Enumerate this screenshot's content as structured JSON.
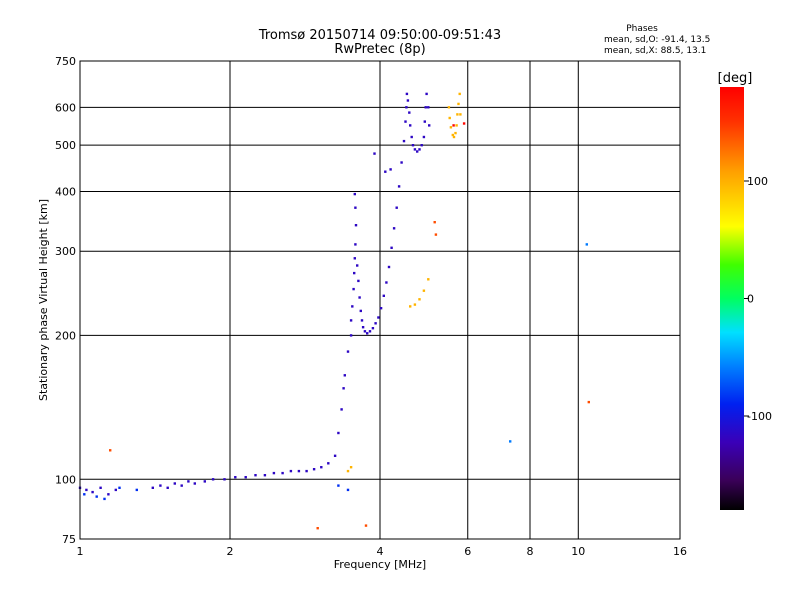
{
  "chart_data": {
    "type": "scatter",
    "title": "Tromsø 20150714 09:50:00-09:51:43",
    "subtitle": "RwPretec (8p)",
    "xlabel": "Frequency [MHz]",
    "ylabel": "Stationary phase Virtual Height [km]",
    "x_scale": "log",
    "y_scale": "log",
    "xlim": [
      1,
      16
    ],
    "ylim": [
      75,
      750
    ],
    "x_ticks": [
      1,
      2,
      4,
      6,
      8,
      10,
      16
    ],
    "y_ticks": [
      75,
      100,
      200,
      300,
      400,
      500,
      600,
      750
    ],
    "grid": true,
    "phase_stats": {
      "heading": "Phases",
      "line1": "mean, sd,O: -91.4, 13.5",
      "line2": "mean, sd,X:  88.5, 13.1"
    },
    "colorbar": {
      "label": "[deg]",
      "range": [
        -180,
        180
      ],
      "ticks": [
        100,
        0,
        -100
      ]
    },
    "series": [
      {
        "phase_deg": -115,
        "points": [
          [
            1.0,
            96
          ],
          [
            1.03,
            95
          ],
          [
            1.06,
            94
          ],
          [
            1.1,
            96
          ],
          [
            1.14,
            93
          ],
          [
            1.18,
            95
          ],
          [
            1.4,
            96
          ],
          [
            1.45,
            97
          ],
          [
            1.5,
            96
          ],
          [
            1.55,
            98
          ],
          [
            1.6,
            97
          ],
          [
            1.65,
            99
          ],
          [
            1.7,
            98
          ],
          [
            1.78,
            99
          ],
          [
            1.85,
            100
          ],
          [
            1.95,
            100
          ],
          [
            2.05,
            101
          ],
          [
            2.15,
            101
          ],
          [
            2.25,
            102
          ],
          [
            2.35,
            102
          ],
          [
            2.45,
            103
          ],
          [
            2.55,
            103
          ],
          [
            2.65,
            104
          ],
          [
            2.75,
            104
          ],
          [
            2.85,
            104
          ],
          [
            2.95,
            105
          ],
          [
            3.05,
            106
          ],
          [
            3.15,
            108
          ],
          [
            3.25,
            112
          ],
          [
            3.3,
            125
          ],
          [
            3.35,
            140
          ],
          [
            3.38,
            155
          ],
          [
            3.4,
            165
          ],
          [
            3.45,
            185
          ],
          [
            3.5,
            200
          ],
          [
            3.5,
            215
          ],
          [
            3.52,
            230
          ],
          [
            3.54,
            250
          ],
          [
            3.55,
            270
          ],
          [
            3.56,
            290
          ],
          [
            3.57,
            310
          ],
          [
            3.58,
            340
          ],
          [
            3.57,
            370
          ],
          [
            3.56,
            395
          ],
          [
            3.6,
            280
          ],
          [
            3.62,
            260
          ],
          [
            3.64,
            240
          ],
          [
            3.66,
            225
          ],
          [
            3.68,
            215
          ],
          [
            3.7,
            208
          ],
          [
            3.73,
            204
          ],
          [
            3.77,
            202
          ],
          [
            3.82,
            204
          ],
          [
            3.87,
            207
          ],
          [
            3.92,
            212
          ],
          [
            3.97,
            218
          ],
          [
            4.02,
            228
          ],
          [
            4.07,
            242
          ],
          [
            4.12,
            258
          ],
          [
            4.17,
            278
          ],
          [
            4.22,
            305
          ],
          [
            4.27,
            335
          ],
          [
            4.32,
            370
          ],
          [
            4.37,
            410
          ],
          [
            4.42,
            460
          ],
          [
            4.47,
            510
          ],
          [
            4.5,
            560
          ],
          [
            4.52,
            600
          ],
          [
            4.53,
            640
          ],
          [
            4.55,
            620
          ],
          [
            4.58,
            585
          ],
          [
            4.6,
            550
          ],
          [
            4.63,
            520
          ],
          [
            4.66,
            500
          ],
          [
            4.7,
            490
          ],
          [
            4.75,
            485
          ],
          [
            4.8,
            490
          ],
          [
            4.85,
            500
          ],
          [
            4.9,
            520
          ],
          [
            4.92,
            560
          ],
          [
            4.94,
            600
          ],
          [
            4.96,
            640
          ],
          [
            5.0,
            600
          ],
          [
            5.02,
            550
          ],
          [
            3.9,
            480
          ],
          [
            4.1,
            440
          ],
          [
            4.2,
            445
          ]
        ]
      },
      {
        "phase_deg": -85,
        "points": [
          [
            1.02,
            93
          ],
          [
            1.08,
            92
          ],
          [
            1.12,
            91
          ],
          [
            1.2,
            96
          ],
          [
            1.3,
            95
          ],
          [
            3.3,
            97
          ],
          [
            3.45,
            95
          ]
        ]
      },
      {
        "phase_deg": -60,
        "points": [
          [
            7.3,
            120
          ],
          [
            10.4,
            310
          ]
        ]
      },
      {
        "phase_deg": 98,
        "points": [
          [
            4.6,
            230
          ],
          [
            4.7,
            232
          ],
          [
            4.8,
            238
          ],
          [
            4.9,
            248
          ],
          [
            5.0,
            262
          ],
          [
            5.5,
            600
          ],
          [
            5.52,
            570
          ],
          [
            5.55,
            545
          ],
          [
            5.6,
            525
          ],
          [
            5.63,
            520
          ],
          [
            5.67,
            530
          ],
          [
            5.7,
            550
          ],
          [
            5.72,
            580
          ],
          [
            5.75,
            610
          ],
          [
            5.78,
            640
          ],
          [
            5.8,
            580
          ],
          [
            3.45,
            104
          ],
          [
            3.5,
            106
          ]
        ]
      },
      {
        "phase_deg": 140,
        "points": [
          [
            1.15,
            115
          ],
          [
            3.0,
            79
          ],
          [
            3.75,
            80
          ],
          [
            5.15,
            345
          ],
          [
            5.18,
            325
          ],
          [
            10.5,
            145
          ]
        ]
      },
      {
        "phase_deg": 175,
        "points": [
          [
            5.9,
            555
          ],
          [
            5.62,
            550
          ]
        ]
      }
    ]
  }
}
